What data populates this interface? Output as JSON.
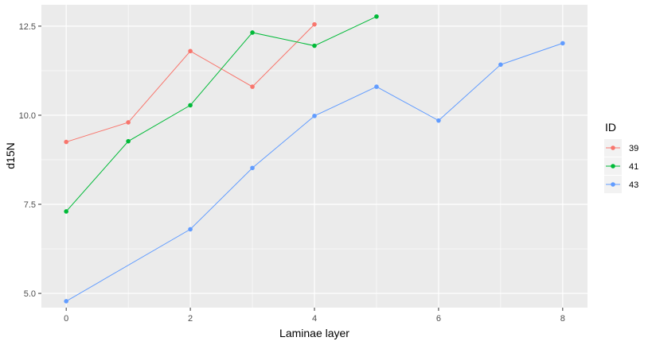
{
  "chart_data": {
    "type": "line",
    "xlabel": "Laminae layer",
    "ylabel": "d15N",
    "xlim": [
      -0.4,
      8.4
    ],
    "ylim": [
      4.6,
      13.1
    ],
    "xticks": [
      0,
      2,
      4,
      6,
      8
    ],
    "yticks": [
      5.0,
      7.5,
      10.0,
      12.5
    ],
    "ytick_labels": [
      "5.0",
      "7.5",
      "10.0",
      "12.5"
    ],
    "xtick_labels": [
      "0",
      "2",
      "4",
      "6",
      "8"
    ],
    "grid": true,
    "legend": {
      "title": "ID",
      "position": "right"
    },
    "series": [
      {
        "name": "39",
        "color": "#F8766D",
        "x": [
          0,
          1,
          2,
          3,
          4
        ],
        "y": [
          9.25,
          9.8,
          11.8,
          10.8,
          12.55
        ]
      },
      {
        "name": "41",
        "color": "#00BA38",
        "x": [
          0,
          1,
          2,
          3,
          4,
          5
        ],
        "y": [
          7.3,
          9.27,
          10.28,
          12.32,
          11.95,
          12.77
        ]
      },
      {
        "name": "43",
        "color": "#619CFF",
        "x": [
          0,
          2,
          3,
          4,
          5,
          6,
          7,
          8
        ],
        "y": [
          4.78,
          6.8,
          8.52,
          9.98,
          10.8,
          9.85,
          11.42,
          12.02
        ]
      }
    ]
  }
}
